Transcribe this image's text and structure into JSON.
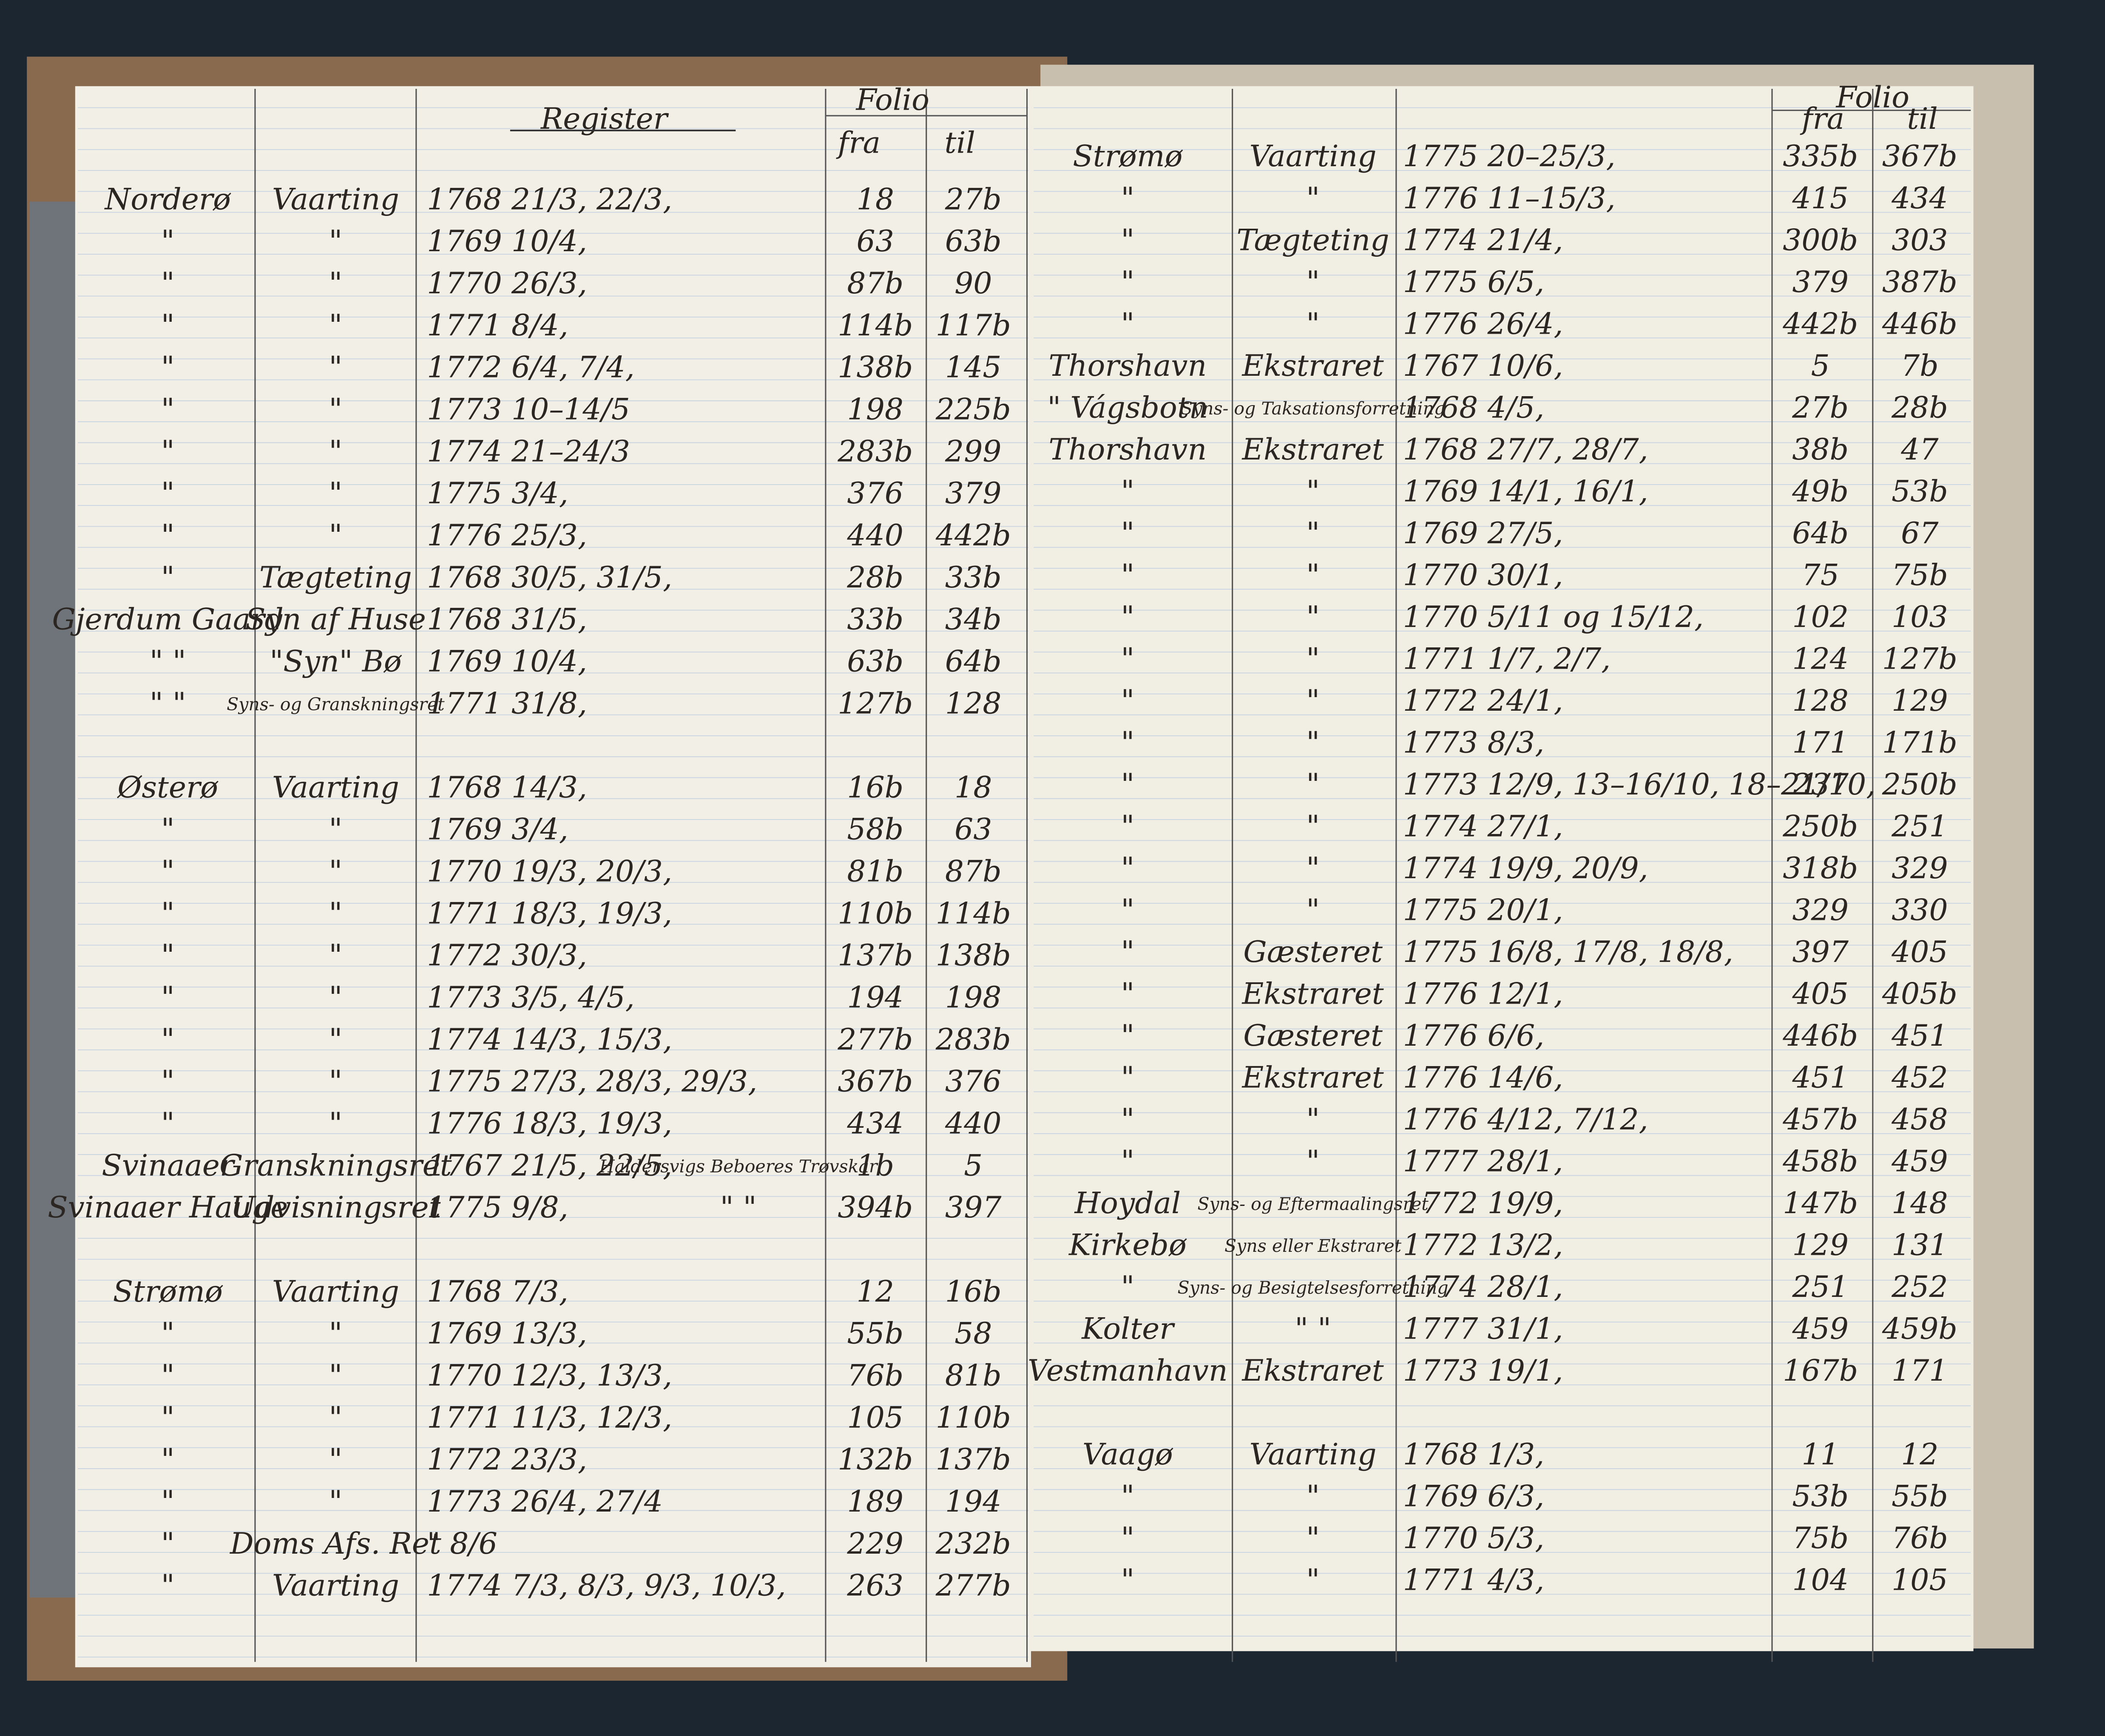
{
  "left_page": {
    "header": {
      "title": "Register",
      "folio": "Folio",
      "fra": "fra",
      "til": "til"
    },
    "sections": [
      {
        "rows": [
          {
            "place": "Norderø",
            "kind": "Vaarting",
            "date": "1768 21/3, 22/3,",
            "fra": "18",
            "til": "27b"
          },
          {
            "place": "\"",
            "kind": "\"",
            "date": "1769 10/4,",
            "fra": "63",
            "til": "63b"
          },
          {
            "place": "\"",
            "kind": "\"",
            "date": "1770 26/3,",
            "fra": "87b",
            "til": "90"
          },
          {
            "place": "\"",
            "kind": "\"",
            "date": "1771 8/4,",
            "fra": "114b",
            "til": "117b"
          },
          {
            "place": "\"",
            "kind": "\"",
            "date": "1772 6/4, 7/4,",
            "fra": "138b",
            "til": "145"
          },
          {
            "place": "\"",
            "kind": "\"",
            "date": "1773 10–14/5",
            "fra": "198",
            "til": "225b"
          },
          {
            "place": "\"",
            "kind": "\"",
            "date": "1774 21–24/3",
            "fra": "283b",
            "til": "299"
          },
          {
            "place": "\"",
            "kind": "\"",
            "date": "1775 3/4,",
            "fra": "376",
            "til": "379"
          },
          {
            "place": "\"",
            "kind": "\"",
            "date": "1776 25/3,",
            "fra": "440",
            "til": "442b"
          },
          {
            "place": "\"",
            "kind": "Tægteting",
            "date": "1768 30/5, 31/5,",
            "fra": "28b",
            "til": "33b"
          },
          {
            "place": "Gjerdum Gaard",
            "kind": "Syn af Huse",
            "date": "1768 31/5,",
            "fra": "33b",
            "til": "34b"
          },
          {
            "place": "\" \"",
            "kind": "\"Syn\" Bø",
            "date": "1769 10/4,",
            "fra": "63b",
            "til": "64b"
          },
          {
            "place": "\" \"",
            "kind": "Syns- og Granskningsret",
            "date": "1771 31/8,",
            "fra": "127b",
            "til": "128"
          }
        ]
      },
      {
        "rows": [
          {
            "place": "Østerø",
            "kind": "Vaarting",
            "date": "1768 14/3,",
            "fra": "16b",
            "til": "18"
          },
          {
            "place": "\"",
            "kind": "\"",
            "date": "1769 3/4,",
            "fra": "58b",
            "til": "63"
          },
          {
            "place": "\"",
            "kind": "\"",
            "date": "1770 19/3, 20/3,",
            "fra": "81b",
            "til": "87b"
          },
          {
            "place": "\"",
            "kind": "\"",
            "date": "1771 18/3, 19/3,",
            "fra": "110b",
            "til": "114b"
          },
          {
            "place": "\"",
            "kind": "\"",
            "date": "1772 30/3,",
            "fra": "137b",
            "til": "138b"
          },
          {
            "place": "\"",
            "kind": "\"",
            "date": "1773 3/5, 4/5,",
            "fra": "194",
            "til": "198"
          },
          {
            "place": "\"",
            "kind": "\"",
            "date": "1774 14/3, 15/3,",
            "fra": "277b",
            "til": "283b"
          },
          {
            "place": "\"",
            "kind": "\"",
            "date": "1775 27/3, 28/3, 29/3,",
            "fra": "367b",
            "til": "376"
          },
          {
            "place": "\"",
            "kind": "\"",
            "date": "1776 18/3, 19/3,",
            "fra": "434",
            "til": "440"
          },
          {
            "place": "Svinaaer",
            "kind": "Granskningsret",
            "date": "1767 21/5, 22/5,",
            "note": "Haldersvigs Beboeres Trøvskar",
            "fra": "1b",
            "til": "5"
          },
          {
            "place": "Svinaaer Hauge",
            "kind": "Udvisningsret",
            "date": "1775 9/8,",
            "note": "\" \"",
            "fra": "394b",
            "til": "397"
          }
        ]
      },
      {
        "rows": [
          {
            "place": "Strømø",
            "kind": "Vaarting",
            "date": "1768 7/3,",
            "fra": "12",
            "til": "16b"
          },
          {
            "place": "\"",
            "kind": "\"",
            "date": "1769 13/3,",
            "fra": "55b",
            "til": "58"
          },
          {
            "place": "\"",
            "kind": "\"",
            "date": "1770 12/3, 13/3,",
            "fra": "76b",
            "til": "81b"
          },
          {
            "place": "\"",
            "kind": "\"",
            "date": "1771 11/3, 12/3,",
            "fra": "105",
            "til": "110b"
          },
          {
            "place": "\"",
            "kind": "\"",
            "date": "1772 23/3,",
            "fra": "132b",
            "til": "137b"
          },
          {
            "place": "\"",
            "kind": "\"",
            "date": "1773 26/4, 27/4",
            "fra": "189",
            "til": "194"
          },
          {
            "place": "\"",
            "kind": "Doms Afs. Ret",
            "date": "\" 8/6",
            "fra": "229",
            "til": "232b"
          },
          {
            "place": "\"",
            "kind": "Vaarting",
            "date": "1774 7/3, 8/3, 9/3, 10/3,",
            "fra": "263",
            "til": "277b"
          }
        ]
      }
    ]
  },
  "right_page": {
    "header": {
      "folio": "Folio",
      "fra": "fra",
      "til": "til"
    },
    "sections": [
      {
        "rows": [
          {
            "place": "Strømø",
            "kind": "Vaarting",
            "date": "1775 20–25/3,",
            "fra": "335b",
            "til": "367b"
          },
          {
            "place": "\"",
            "kind": "\"",
            "date": "1776 11–15/3,",
            "fra": "415",
            "til": "434"
          },
          {
            "place": "\"",
            "kind": "Tægteting",
            "date": "1774 21/4,",
            "fra": "300b",
            "til": "303"
          },
          {
            "place": "\"",
            "kind": "\"",
            "date": "1775 6/5,",
            "fra": "379",
            "til": "387b"
          },
          {
            "place": "\"",
            "kind": "\"",
            "date": "1776 26/4,",
            "fra": "442b",
            "til": "446b"
          },
          {
            "place": "Thorshavn",
            "kind": "Ekstraret",
            "date": "1767 10/6,",
            "fra": "5",
            "til": "7b"
          },
          {
            "place": "\" Vágsbotn",
            "kind": "Syns- og Taksationsforretning",
            "date": "1768 4/5,",
            "fra": "27b",
            "til": "28b"
          },
          {
            "place": "Thorshavn",
            "kind": "Ekstraret",
            "date": "1768 27/7, 28/7,",
            "fra": "38b",
            "til": "47"
          },
          {
            "place": "\"",
            "kind": "\"",
            "date": "1769 14/1, 16/1,",
            "fra": "49b",
            "til": "53b"
          },
          {
            "place": "\"",
            "kind": "\"",
            "date": "1769 27/5,",
            "fra": "64b",
            "til": "67"
          },
          {
            "place": "\"",
            "kind": "\"",
            "date": "1770 30/1,",
            "fra": "75",
            "til": "75b"
          },
          {
            "place": "\"",
            "kind": "\"",
            "date": "1770 5/11 og 15/12,",
            "fra": "102",
            "til": "103"
          },
          {
            "place": "\"",
            "kind": "\"",
            "date": "1771 1/7, 2/7,",
            "fra": "124",
            "til": "127b"
          },
          {
            "place": "\"",
            "kind": "\"",
            "date": "1772 24/1,",
            "fra": "128",
            "til": "129"
          },
          {
            "place": "\"",
            "kind": "\"",
            "date": "1773 8/3,",
            "fra": "171",
            "til": "171b"
          },
          {
            "place": "\"",
            "kind": "\"",
            "date": "1773 12/9, 13–16/10, 18–21/10,",
            "fra": "237",
            "til": "250b"
          },
          {
            "place": "\"",
            "kind": "\"",
            "date": "1774 27/1,",
            "fra": "250b",
            "til": "251"
          },
          {
            "place": "\"",
            "kind": "\"",
            "date": "1774 19/9, 20/9,",
            "fra": "318b",
            "til": "329"
          },
          {
            "place": "\"",
            "kind": "\"",
            "date": "1775 20/1,",
            "fra": "329",
            "til": "330"
          },
          {
            "place": "\"",
            "kind": "Gæsteret",
            "date": "1775 16/8, 17/8, 18/8,",
            "fra": "397",
            "til": "405"
          },
          {
            "place": "\"",
            "kind": "Ekstraret",
            "date": "1776 12/1,",
            "fra": "405",
            "til": "405b"
          },
          {
            "place": "\"",
            "kind": "Gæsteret",
            "date": "1776 6/6,",
            "fra": "446b",
            "til": "451"
          },
          {
            "place": "\"",
            "kind": "Ekstraret",
            "date": "1776 14/6,",
            "fra": "451",
            "til": "452"
          },
          {
            "place": "\"",
            "kind": "\"",
            "date": "1776 4/12, 7/12,",
            "fra": "457b",
            "til": "458"
          },
          {
            "place": "\"",
            "kind": "\"",
            "date": "1777 28/1,",
            "fra": "458b",
            "til": "459"
          },
          {
            "place": "Hoydal",
            "kind": "Syns- og Eftermaalingsret",
            "date": "1772 19/9,",
            "fra": "147b",
            "til": "148"
          },
          {
            "place": "Kirkebø",
            "kind": "Syns eller Ekstraret",
            "date": "1772 13/2,",
            "fra": "129",
            "til": "131"
          },
          {
            "place": "\"",
            "kind": "Syns- og Besigtelsesforretning",
            "date": "1774 28/1,",
            "fra": "251",
            "til": "252"
          },
          {
            "place": "Kolter",
            "kind": "\" \"",
            "date": "1777 31/1,",
            "fra": "459",
            "til": "459b"
          },
          {
            "place": "Vestmanhavn",
            "kind": "Ekstraret",
            "date": "1773 19/1,",
            "fra": "167b",
            "til": "171"
          }
        ]
      },
      {
        "rows": [
          {
            "place": "Vaagø",
            "kind": "Vaarting",
            "date": "1768 1/3,",
            "fra": "11",
            "til": "12"
          },
          {
            "place": "\"",
            "kind": "\"",
            "date": "1769 6/3,",
            "fra": "53b",
            "til": "55b"
          },
          {
            "place": "\"",
            "kind": "\"",
            "date": "1770 5/3,",
            "fra": "75b",
            "til": "76b"
          },
          {
            "place": "\"",
            "kind": "\"",
            "date": "1771 4/3,",
            "fra": "104",
            "til": "105"
          }
        ]
      }
    ]
  }
}
